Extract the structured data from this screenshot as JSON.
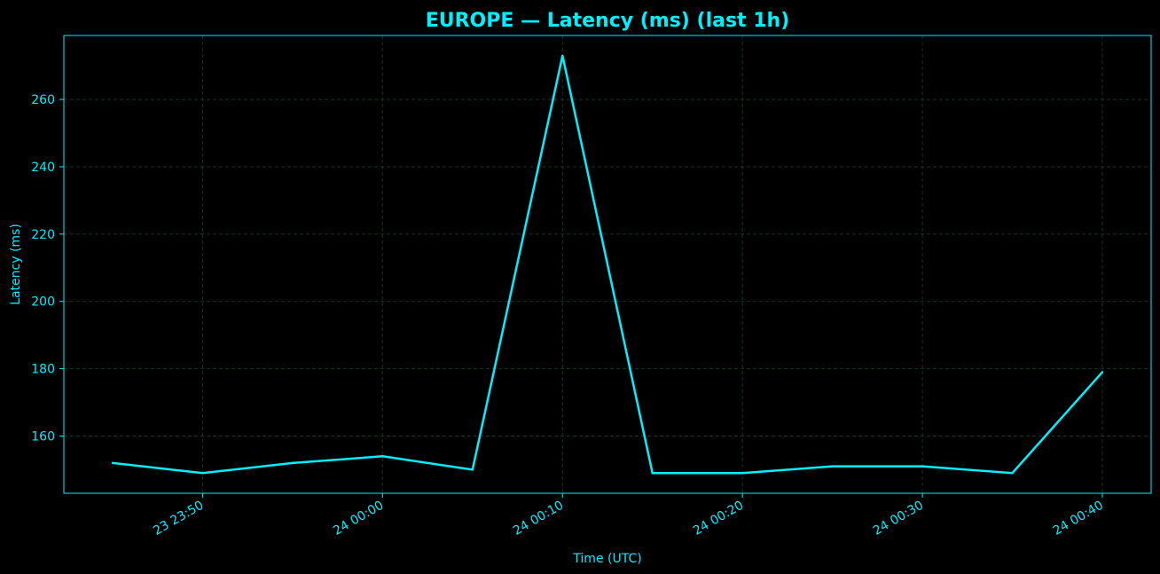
{
  "colors": {
    "background": "#000000",
    "accent": "#00f0ff",
    "grid": "#0f3a20"
  },
  "chart_data": {
    "type": "line",
    "title": "EUROPE — Latency (ms) (last 1h)",
    "xlabel": "Time (UTC)",
    "ylabel": "Latency (ms)",
    "x": [
      "23 23:45",
      "23 23:50",
      "23 23:55",
      "24 00:00",
      "24 00:05",
      "24 00:10",
      "24 00:15",
      "24 00:20",
      "24 00:25",
      "24 00:30",
      "24 00:35",
      "24 00:40"
    ],
    "xticks": [
      "23 23:50",
      "24 00:00",
      "24 00:10",
      "24 00:20",
      "24 00:30",
      "24 00:40"
    ],
    "yticks": [
      160,
      180,
      200,
      220,
      240,
      260
    ],
    "ylim": [
      143,
      279
    ],
    "grid": true,
    "series": [
      {
        "values": [
          152,
          149,
          152,
          154,
          150,
          273,
          149,
          149,
          151,
          151,
          149,
          179
        ]
      }
    ]
  }
}
